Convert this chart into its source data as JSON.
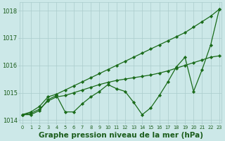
{
  "x": [
    0,
    1,
    2,
    3,
    4,
    5,
    6,
    7,
    8,
    9,
    10,
    11,
    12,
    13,
    14,
    15,
    16,
    17,
    18,
    19,
    20,
    21,
    22,
    23
  ],
  "line_top": [
    1014.2,
    1014.3,
    1014.5,
    1014.85,
    1014.95,
    1015.1,
    1015.25,
    1015.4,
    1015.55,
    1015.7,
    1015.85,
    1016.0,
    1016.15,
    1016.3,
    1016.45,
    1016.6,
    1016.75,
    1016.9,
    1017.05,
    1017.2,
    1017.4,
    1017.6,
    1017.8,
    1018.05
  ],
  "line_mid": [
    1014.2,
    1014.25,
    1014.4,
    1014.7,
    1014.85,
    1014.9,
    1015.0,
    1015.1,
    1015.2,
    1015.3,
    1015.38,
    1015.45,
    1015.5,
    1015.55,
    1015.6,
    1015.65,
    1015.72,
    1015.8,
    1015.9,
    1016.0,
    1016.1,
    1016.2,
    1016.3,
    1016.35
  ],
  "line_data": [
    1014.2,
    1014.2,
    1014.35,
    1014.75,
    1014.9,
    1014.3,
    1014.3,
    1014.6,
    1014.85,
    1015.05,
    1015.3,
    1015.15,
    1015.05,
    1014.65,
    1014.2,
    1014.45,
    1014.9,
    1015.4,
    1015.95,
    1016.3,
    1015.05,
    1015.85,
    1016.75,
    1018.05
  ],
  "bg_color": "#cce8e8",
  "line_color": "#1a6b1a",
  "grid_color": "#aacccc",
  "text_color": "#1a5c1a",
  "marker": "D",
  "marker_size": 2.2,
  "lw": 0.9,
  "ylim": [
    1013.9,
    1018.3
  ],
  "yticks": [
    1014,
    1015,
    1016,
    1017,
    1018
  ],
  "xlabel": "Graphe pression niveau de la mer (hPa)",
  "xlabel_fontsize": 7.5,
  "ytick_fontsize": 6,
  "xtick_fontsize": 4.8
}
